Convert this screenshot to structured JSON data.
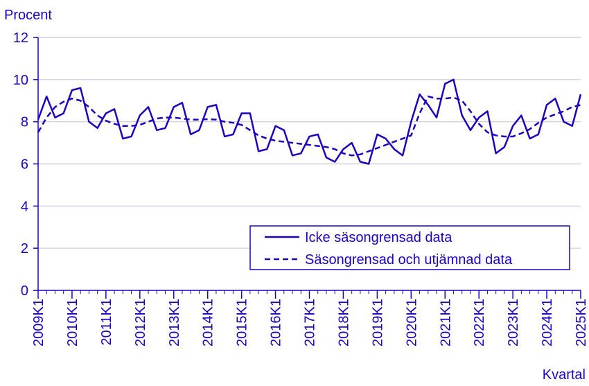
{
  "chart_data": {
    "type": "line",
    "ylabel": "Procent",
    "xlabel": "Kvartal",
    "ylim": [
      0,
      12
    ],
    "yticks": [
      0,
      2,
      4,
      6,
      8,
      10,
      12
    ],
    "grid": true,
    "legend_position": "bottom-right",
    "x_tick_labels": [
      "2009K1",
      "2010K1",
      "2011K1",
      "2012K1",
      "2013K1",
      "2014K1",
      "2015K1",
      "2016K1",
      "2017K1",
      "2018K1",
      "2019K1",
      "2020K1",
      "2021K1",
      "2022K1",
      "2023K1",
      "2024K1",
      "2025K1"
    ],
    "quarters_per_tick": 4,
    "series": [
      {
        "name": "Icke säsongrensad data",
        "style": "solid",
        "values": [
          8.1,
          9.2,
          8.2,
          8.4,
          9.5,
          9.6,
          8.0,
          7.7,
          8.4,
          8.6,
          7.2,
          7.3,
          8.3,
          8.7,
          7.6,
          7.7,
          8.7,
          8.9,
          7.4,
          7.6,
          8.7,
          8.8,
          7.3,
          7.4,
          8.4,
          8.4,
          6.6,
          6.7,
          7.8,
          7.6,
          6.4,
          6.5,
          7.3,
          7.4,
          6.3,
          6.1,
          6.7,
          7.0,
          6.1,
          6.0,
          7.4,
          7.2,
          6.7,
          6.4,
          8.0,
          9.3,
          8.8,
          8.2,
          9.8,
          10.0,
          8.3,
          7.6,
          8.2,
          8.5,
          6.5,
          6.8,
          7.8,
          8.3,
          7.2,
          7.4,
          8.8,
          9.1,
          8.0,
          7.8,
          9.3
        ]
      },
      {
        "name": "Säsongrensad och utjämnad data",
        "style": "dashed",
        "values": [
          7.5,
          8.2,
          8.7,
          8.95,
          9.1,
          9.0,
          8.7,
          8.3,
          8.05,
          7.9,
          7.8,
          7.8,
          7.85,
          8.0,
          8.15,
          8.2,
          8.2,
          8.15,
          8.1,
          8.1,
          8.12,
          8.1,
          8.0,
          7.95,
          7.85,
          7.6,
          7.35,
          7.2,
          7.1,
          7.05,
          7.0,
          6.95,
          6.9,
          6.85,
          6.8,
          6.7,
          6.5,
          6.4,
          6.45,
          6.6,
          6.75,
          6.9,
          7.05,
          7.2,
          7.35,
          8.4,
          9.2,
          9.1,
          9.1,
          9.15,
          9.0,
          8.5,
          7.9,
          7.5,
          7.35,
          7.3,
          7.3,
          7.45,
          7.65,
          7.95,
          8.2,
          8.35,
          8.5,
          8.7,
          8.8
        ]
      }
    ]
  }
}
